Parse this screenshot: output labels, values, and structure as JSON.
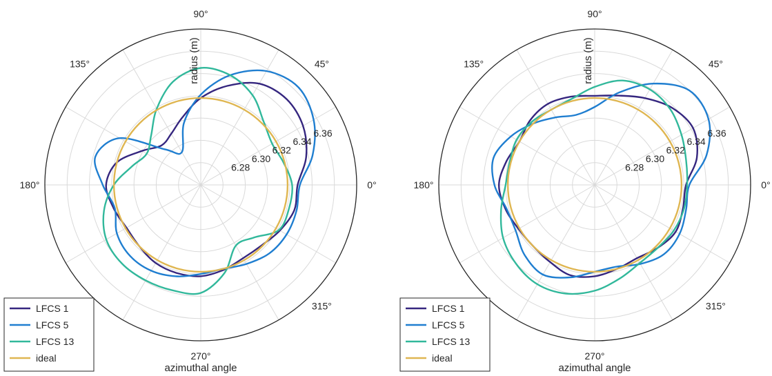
{
  "chart_data": [
    {
      "type": "polar-line",
      "title": "",
      "xlabel": "azimuthal angle",
      "rlabel": "radius (m)",
      "theta_ticks": [
        "0°",
        "45°",
        "90°",
        "135°",
        "180°",
        "315°",
        "270°"
      ],
      "r_ticks": [
        "6.28",
        "6.30",
        "6.32",
        "6.34",
        "6.36"
      ],
      "r_tick_values": [
        6.28,
        6.3,
        6.32,
        6.34,
        6.36
      ],
      "rlim": [
        6.24,
        6.38
      ],
      "grid": true,
      "legend_position": "bottom-left",
      "colors": {
        "LFCS 1": "#35267f",
        "LFCS 5": "#1f7ed0",
        "LFCS 13": "#31b89b",
        "ideal": "#dfb651"
      },
      "series": [
        {
          "name": "LFCS 1",
          "r": [
            6.327,
            6.338,
            6.346,
            6.349,
            6.345,
            6.332,
            6.318,
            6.303,
            6.293,
            6.29,
            6.301,
            6.318,
            6.325,
            6.321,
            6.317,
            6.318,
            6.321,
            6.322,
            6.322,
            6.319,
            6.316,
            6.317,
            6.322,
            6.327
          ]
        },
        {
          "name": "LFCS 5",
          "r": [
            6.329,
            6.344,
            6.357,
            6.364,
            6.358,
            6.342,
            6.321,
            6.298,
            6.274,
            6.285,
            6.324,
            6.338,
            6.328,
            6.32,
            6.327,
            6.33,
            6.329,
            6.325,
            6.32,
            6.318,
            6.322,
            6.327,
            6.329,
            6.329
          ]
        },
        {
          "name": "LFCS 13",
          "r": [
            6.322,
            6.317,
            6.314,
            6.32,
            6.333,
            6.342,
            6.345,
            6.336,
            6.319,
            6.303,
            6.296,
            6.304,
            6.318,
            6.33,
            6.338,
            6.34,
            6.339,
            6.338,
            6.337,
            6.322,
            6.303,
            6.307,
            6.321,
            6.322
          ]
        },
        {
          "name": "ideal",
          "r": [
            6.318,
            6.318,
            6.318,
            6.318,
            6.318,
            6.318,
            6.318,
            6.318,
            6.318,
            6.318,
            6.318,
            6.318,
            6.318,
            6.318,
            6.318,
            6.318,
            6.318,
            6.318,
            6.318,
            6.318,
            6.318,
            6.318,
            6.318,
            6.318
          ]
        }
      ]
    },
    {
      "type": "polar-line",
      "title": "",
      "xlabel": "azimuthal angle",
      "rlabel": "radius (m)",
      "theta_ticks": [
        "0°",
        "45°",
        "90°",
        "135°",
        "180°",
        "315°",
        "270°"
      ],
      "r_ticks": [
        "6.28",
        "6.30",
        "6.32",
        "6.34",
        "6.36"
      ],
      "r_tick_values": [
        6.28,
        6.3,
        6.32,
        6.34,
        6.36
      ],
      "rlim": [
        6.24,
        6.38
      ],
      "grid": true,
      "legend_position": "bottom-left",
      "colors": {
        "LFCS 1": "#35267f",
        "LFCS 5": "#1f7ed0",
        "LFCS 13": "#31b89b",
        "ideal": "#dfb651"
      },
      "series": [
        {
          "name": "LFCS 1",
          "r": [
            6.322,
            6.335,
            6.342,
            6.338,
            6.33,
            6.323,
            6.32,
            6.322,
            6.324,
            6.322,
            6.318,
            6.322,
            6.326,
            6.323,
            6.319,
            6.318,
            6.32,
            6.324,
            6.322,
            6.318,
            6.316,
            6.32,
            6.324,
            6.322
          ]
        },
        {
          "name": "LFCS 5",
          "r": [
            6.325,
            6.344,
            6.358,
            6.36,
            6.345,
            6.326,
            6.31,
            6.305,
            6.31,
            6.318,
            6.327,
            6.334,
            6.33,
            6.322,
            6.322,
            6.329,
            6.333,
            6.326,
            6.318,
            6.316,
            6.322,
            6.328,
            6.328,
            6.325
          ]
        },
        {
          "name": "LFCS 13",
          "r": [
            6.323,
            6.325,
            6.33,
            6.336,
            6.339,
            6.337,
            6.328,
            6.32,
            6.318,
            6.32,
            6.321,
            6.319,
            6.32,
            6.327,
            6.335,
            6.34,
            6.343,
            6.341,
            6.335,
            6.327,
            6.321,
            6.32,
            6.322,
            6.323
          ]
        },
        {
          "name": "ideal",
          "r": [
            6.318,
            6.318,
            6.318,
            6.318,
            6.318,
            6.318,
            6.318,
            6.318,
            6.318,
            6.318,
            6.318,
            6.318,
            6.318,
            6.318,
            6.318,
            6.318,
            6.318,
            6.318,
            6.318,
            6.318,
            6.318,
            6.318,
            6.318,
            6.318
          ]
        }
      ]
    }
  ]
}
